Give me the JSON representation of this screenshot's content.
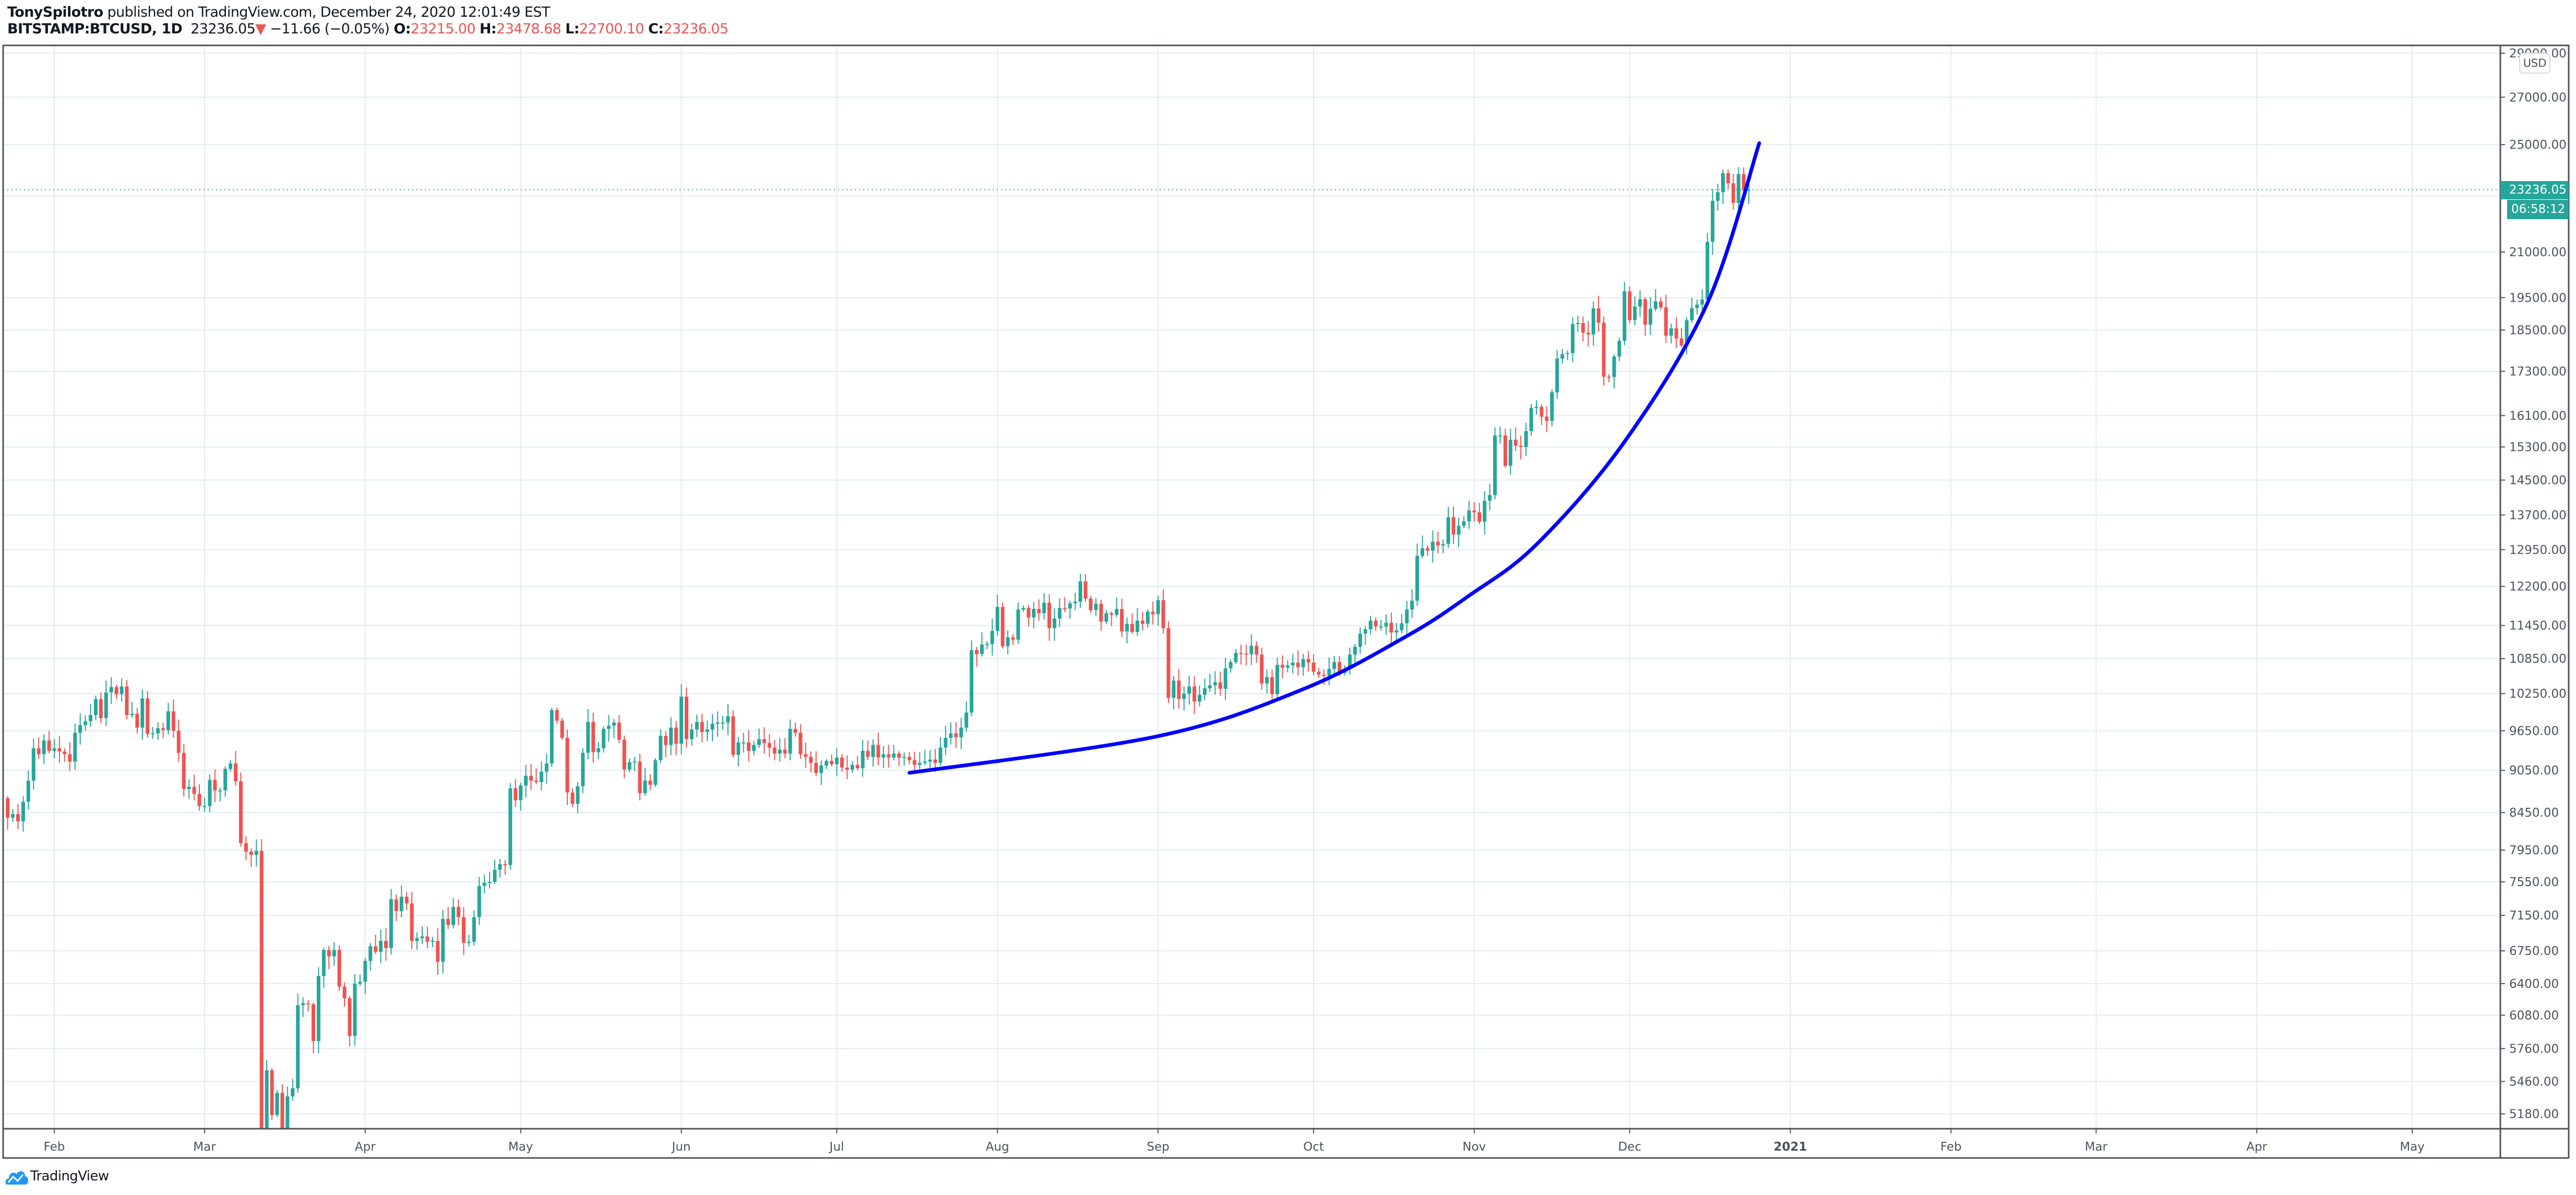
{
  "header": {
    "author": "TonySpilotro",
    "published": " published on TradingView.com, December 24, 2020 12:01:49 EST",
    "symbol": "BITSTAMP:BTCUSD, 1D",
    "last": "23236.05",
    "direction_icon": "triangle-down-icon",
    "change": "−11.66 (−0.05%)",
    "o_label": "O:",
    "o": "23215.00",
    "h_label": "H:",
    "h": "23478.68",
    "l_label": "L:",
    "l": "22700.10",
    "c_label": "C:",
    "c": "23236.05"
  },
  "price_axis": {
    "currency": "USD",
    "last_price": "23236.05",
    "countdown": "06:58:12"
  },
  "colors": {
    "up": "#26a69a",
    "down": "#ef5350",
    "grid": "#e1ecf2",
    "axis": "#50535e",
    "trendline": "#0000ff",
    "brand": "#2196f3"
  },
  "chart_data": {
    "type": "candlestick",
    "scale": "log",
    "grid": true,
    "ylim": [
      5050,
      29500
    ],
    "yticks": [
      "29000.00",
      "27000.00",
      "25000.00",
      "21000.00",
      "19500.00",
      "18500.00",
      "17300.00",
      "16100.00",
      "15300.00",
      "14500.00",
      "13700.00",
      "12950.00",
      "12200.00",
      "11450.00",
      "10850.00",
      "10250.00",
      "9650.00",
      "9050.00",
      "8450.00",
      "7950.00",
      "7550.00",
      "7150.00",
      "6750.00",
      "6400.00",
      "6080.00",
      "5760.00",
      "5460.00",
      "5180.00"
    ],
    "hidden_grid_levels": [
      23000
    ],
    "xticks": [
      {
        "label": "Feb",
        "date": "2020-02-01"
      },
      {
        "label": "Mar",
        "date": "2020-03-01"
      },
      {
        "label": "Apr",
        "date": "2020-04-01"
      },
      {
        "label": "May",
        "date": "2020-05-01"
      },
      {
        "label": "Jun",
        "date": "2020-06-01"
      },
      {
        "label": "Jul",
        "date": "2020-07-01"
      },
      {
        "label": "Aug",
        "date": "2020-08-01"
      },
      {
        "label": "Sep",
        "date": "2020-09-01"
      },
      {
        "label": "Oct",
        "date": "2020-10-01"
      },
      {
        "label": "Nov",
        "date": "2020-11-01"
      },
      {
        "label": "Dec",
        "date": "2020-12-01"
      },
      {
        "label": "2021",
        "date": "2021-01-01"
      },
      {
        "label": "Feb",
        "date": "2021-02-01"
      },
      {
        "label": "Mar",
        "date": "2021-03-01"
      },
      {
        "label": "Apr",
        "date": "2021-04-01"
      },
      {
        "label": "May",
        "date": "2021-05-01"
      }
    ],
    "daily_closes": [
      {
        "month": "2020-01",
        "first_day": 23,
        "closes": [
          8380,
          8430,
          8330,
          8600,
          8900,
          9380,
          9290,
          9500,
          9340
        ]
      },
      {
        "month": "2020-02",
        "first_day": 1,
        "closes": [
          9380,
          9330,
          9290,
          9180,
          9620,
          9740,
          9800,
          9900,
          10160,
          9850,
          10270,
          10360,
          10240,
          10370,
          9900,
          9920,
          9700,
          10170,
          9600,
          9610,
          9690,
          9660,
          9960,
          9650,
          9310,
          8780,
          8810,
          8710,
          8540
        ]
      },
      {
        "month": "2020-03",
        "first_day": 1,
        "closes": [
          8540,
          8910,
          8760,
          8760,
          9070,
          9150,
          8890,
          8040,
          7930,
          7890,
          7940,
          4860,
          5560,
          5170,
          5360,
          5020,
          5330,
          5400,
          6180,
          6200,
          6190,
          5830,
          6480,
          6760,
          6690,
          6760,
          6370,
          6250,
          5880,
          6400,
          6420
        ]
      },
      {
        "month": "2020-04",
        "first_day": 1,
        "closes": [
          6640,
          6800,
          6740,
          6860,
          6780,
          7340,
          7200,
          7370,
          7290,
          6860,
          6890,
          6910,
          6850,
          6860,
          6630,
          7110,
          7040,
          7250,
          7130,
          6840,
          6850,
          7130,
          7500,
          7540,
          7550,
          7700,
          7770,
          7760,
          8790,
          8620
        ]
      },
      {
        "month": "2020-05",
        "first_day": 1,
        "closes": [
          8830,
          8970,
          8900,
          8880,
          9030,
          9150,
          9980,
          9810,
          9540,
          8730,
          8570,
          8820,
          9310,
          9790,
          9320,
          9380,
          9680,
          9730,
          9780,
          9510,
          9060,
          9170,
          9180,
          8720,
          8900,
          8840,
          9200,
          9570,
          9430,
          9700,
          9450
        ]
      },
      {
        "month": "2020-06",
        "first_day": 1,
        "closes": [
          10200,
          9520,
          9670,
          9790,
          9630,
          9670,
          9760,
          9780,
          9780,
          9880,
          9280,
          9470,
          9470,
          9340,
          9430,
          9520,
          9460,
          9390,
          9300,
          9360,
          9300,
          9680,
          9620,
          9290,
          9250,
          9160,
          9010,
          9120,
          9190,
          9140
        ]
      },
      {
        "month": "2020-07",
        "first_day": 1,
        "closes": [
          9240,
          9090,
          9060,
          9130,
          9080,
          9340,
          9250,
          9430,
          9240,
          9290,
          9240,
          9300,
          9240,
          9250,
          9200,
          9130,
          9160,
          9180,
          9210,
          9160,
          9390,
          9540,
          9610,
          9550,
          9700,
          9940,
          11000,
          10930,
          11100,
          11110,
          11350
        ]
      },
      {
        "month": "2020-08",
        "first_day": 1,
        "closes": [
          11800,
          11070,
          11230,
          11190,
          11750,
          11780,
          11600,
          11760,
          11680,
          11880,
          11400,
          11580,
          11780,
          11770,
          11870,
          11900,
          12300,
          11960,
          11740,
          11860,
          11520,
          11680,
          11650,
          11760,
          11340,
          11480,
          11330,
          11540,
          11480,
          11710,
          11660
        ]
      },
      {
        "month": "2020-09",
        "first_day": 1,
        "closes": [
          11930,
          11400,
          10180,
          10470,
          10160,
          10250,
          10370,
          10120,
          10230,
          10340,
          10390,
          10440,
          10330,
          10680,
          10790,
          10950,
          10940,
          10930,
          11080,
          10920,
          10420,
          10530,
          10240,
          10740,
          10690,
          10730,
          10780,
          10700,
          10840,
          10780
        ]
      },
      {
        "month": "2020-10",
        "first_day": 1,
        "closes": [
          10620,
          10570,
          10550,
          10670,
          10790,
          10600,
          10670,
          10920,
          11060,
          11300,
          11380,
          11540,
          11430,
          11430,
          11500,
          11320,
          11360,
          11490,
          11750,
          11920,
          12820,
          12980,
          12930,
          13120,
          13040,
          13070,
          13650,
          13270,
          13460,
          13560,
          13800
        ]
      },
      {
        "month": "2020-11",
        "first_day": 1,
        "closes": [
          13760,
          13550,
          14020,
          14150,
          15590,
          15590,
          14840,
          15480,
          15330,
          15300,
          15700,
          16300,
          16330,
          16070,
          15960,
          16720,
          17660,
          17790,
          17820,
          18680,
          18710,
          18420,
          18370,
          19160,
          18720,
          17150,
          17140,
          17720,
          18180,
          19700
        ]
      },
      {
        "month": "2020-12",
        "first_day": 1,
        "closes": [
          18800,
          19220,
          19450,
          18660,
          19150,
          19380,
          19190,
          18330,
          18550,
          18250,
          18040,
          18800,
          19170,
          19280,
          19440,
          21350,
          22820,
          23140,
          23870,
          23480,
          22740,
          23830,
          23215,
          23236.05
        ]
      }
    ],
    "last_candle": {
      "date": "2020-12-24",
      "open": 23215.0,
      "high": 23478.68,
      "low": 22700.1,
      "close": 23236.05
    },
    "last_price": 23236.05,
    "trendline": {
      "color": "#0000ff",
      "points": [
        {
          "date": "2020-07-15",
          "price": 9013
        },
        {
          "date": "2020-09-01",
          "price": 9566
        },
        {
          "date": "2020-09-29",
          "price": 10325
        },
        {
          "date": "2020-10-19",
          "price": 11255
        },
        {
          "date": "2020-10-31",
          "price": 12018
        },
        {
          "date": "2020-11-13",
          "price": 13058
        },
        {
          "date": "2020-11-30",
          "price": 15430
        },
        {
          "date": "2020-12-16",
          "price": 19330
        },
        {
          "date": "2020-12-26",
          "price": 25060
        }
      ]
    }
  },
  "footer": {
    "brand": "TradingView",
    "logo_icon": "tradingview-cloud-icon"
  }
}
